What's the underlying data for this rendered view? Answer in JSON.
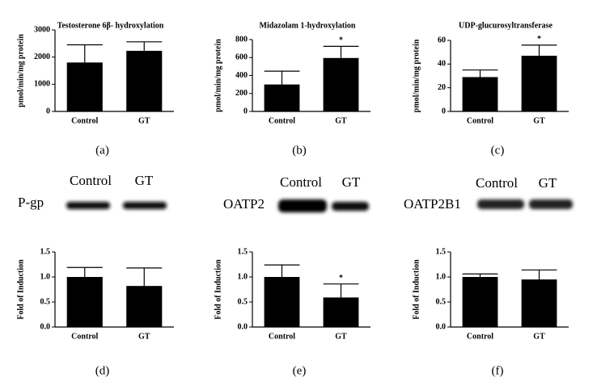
{
  "chart_data": [
    {
      "type": "bar",
      "title": "Testosterone 6β- hydroxylation",
      "y_label": "pmol/min/mg protein",
      "categories": [
        "Control",
        "GT"
      ],
      "values": [
        1800,
        2230
      ],
      "errors": [
        650,
        330
      ],
      "significance": [
        null,
        null
      ],
      "color": "#000000",
      "ylim": [
        0,
        3000
      ],
      "yticks": [
        0,
        1000,
        2000,
        3000
      ]
    },
    {
      "type": "bar",
      "title": "Midazolam 1-hydroxylation",
      "y_label": "pmol/min/mg protein",
      "categories": [
        "Control",
        "GT"
      ],
      "values": [
        300,
        595
      ],
      "errors": [
        148,
        130
      ],
      "significance": [
        null,
        "*"
      ],
      "color": "#000000",
      "ylim": [
        0,
        800
      ],
      "yticks": [
        0,
        200,
        400,
        600,
        800
      ]
    },
    {
      "type": "bar",
      "title": "UDP-glucurosyltransferase",
      "y_label": "pmol/min/mg protein",
      "categories": [
        "Control",
        "GT"
      ],
      "values": [
        29,
        47
      ],
      "errors": [
        6,
        9
      ],
      "significance": [
        null,
        "*"
      ],
      "color": "#000000",
      "ylim": [
        0,
        60
      ],
      "yticks": [
        0,
        20,
        40,
        60
      ]
    },
    {
      "type": "bar",
      "y_label": "Fold of Induction",
      "categories": [
        "Control",
        "GT"
      ],
      "values": [
        1.0,
        0.82
      ],
      "errors": [
        0.19,
        0.36
      ],
      "significance": [
        null,
        null
      ],
      "color": "#000000",
      "ylim": [
        0,
        1.5
      ],
      "yticks": [
        {
          "value": 0,
          "label": "0.0"
        },
        0.5,
        {
          "value": 1,
          "label": "1.0"
        },
        1.5
      ]
    },
    {
      "type": "bar",
      "y_label": "Fold of Induction",
      "categories": [
        "Control",
        "GT"
      ],
      "values": [
        1.0,
        0.59
      ],
      "errors": [
        0.24,
        0.27
      ],
      "significance": [
        null,
        "*"
      ],
      "color": "#000000",
      "ylim": [
        0,
        1.5
      ],
      "yticks": [
        {
          "value": 0,
          "label": "0.0"
        },
        0.5,
        {
          "value": 1,
          "label": "1.0"
        },
        1.5
      ]
    },
    {
      "type": "bar",
      "y_label": "Fold of Induction",
      "categories": [
        "Control",
        "GT"
      ],
      "values": [
        1.0,
        0.95
      ],
      "errors": [
        0.06,
        0.19
      ],
      "significance": [
        null,
        null
      ],
      "color": "#000000",
      "ylim": [
        0,
        1.5
      ],
      "yticks": [
        {
          "value": 0,
          "label": "0.0"
        },
        0.5,
        {
          "value": 1,
          "label": "1.0"
        },
        1.5
      ]
    }
  ],
  "panel_labels": [
    "(a)",
    "(b)",
    "(c)",
    "(d)",
    "(e)",
    "(f)"
  ],
  "blots": [
    {
      "protein": "P-gp",
      "lanes": [
        "Control",
        "GT"
      ]
    },
    {
      "protein": "OATP2",
      "lanes": [
        "Control",
        "GT"
      ]
    },
    {
      "protein": "OATP2B1",
      "lanes": [
        "Control",
        "GT"
      ]
    }
  ]
}
